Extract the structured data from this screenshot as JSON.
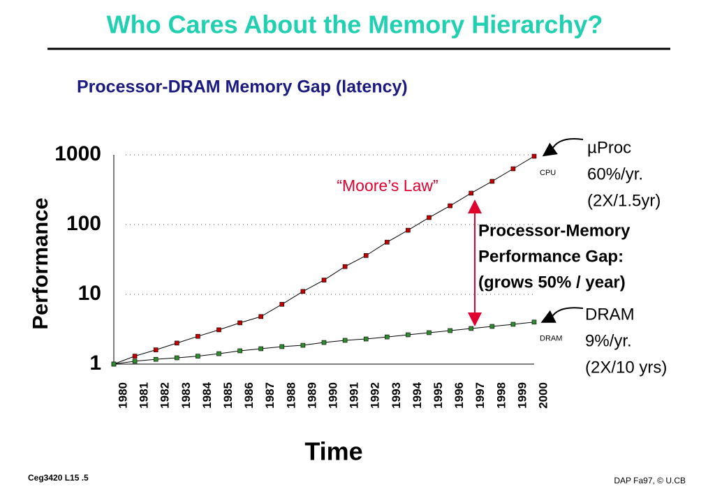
{
  "chart_data": {
    "type": "line",
    "title": "Who Cares About the Memory Hierarchy?",
    "subtitle": "Processor-DRAM Memory Gap (latency)",
    "x_label": "Time",
    "y_label": "Performance",
    "y_scale": "log",
    "ylim": [
      1,
      1000
    ],
    "yticks": [
      1,
      10,
      100,
      1000
    ],
    "grid": true,
    "categories": [
      "1980",
      "1981",
      "1982",
      "1983",
      "1984",
      "1985",
      "1986",
      "1987",
      "1988",
      "1989",
      "1990",
      "1991",
      "1992",
      "1993",
      "1994",
      "1995",
      "1996",
      "1997",
      "1998",
      "1999",
      "2000"
    ],
    "series": [
      {
        "name": "CPU",
        "color": "#c00000",
        "values": [
          1,
          1.3,
          1.6,
          2,
          2.5,
          3.1,
          3.9,
          4.8,
          7.2,
          11,
          16,
          25,
          36,
          56,
          83,
          126,
          186,
          282,
          417,
          631,
          955
        ]
      },
      {
        "name": "DRAM",
        "color": "#2e8b2e",
        "values": [
          1,
          1.1,
          1.17,
          1.23,
          1.3,
          1.41,
          1.55,
          1.66,
          1.78,
          1.86,
          2.04,
          2.19,
          2.29,
          2.45,
          2.63,
          2.82,
          3.02,
          3.24,
          3.47,
          3.72,
          4
        ]
      }
    ],
    "annotations": {
      "moores_law": "“Moore’s Law”",
      "proc": [
        "µProc",
        "60%/yr.",
        "(2X/1.5yr)"
      ],
      "gap": [
        "Processor-Memory",
        "Performance Gap:",
        "(grows 50% / year)"
      ],
      "dram": [
        "DRAM",
        "9%/yr.",
        "(2X/10 yrs)"
      ]
    },
    "footer_left": "Ceg3420 L15 .5",
    "footer_right": "DAP Fa97, © U.CB"
  }
}
